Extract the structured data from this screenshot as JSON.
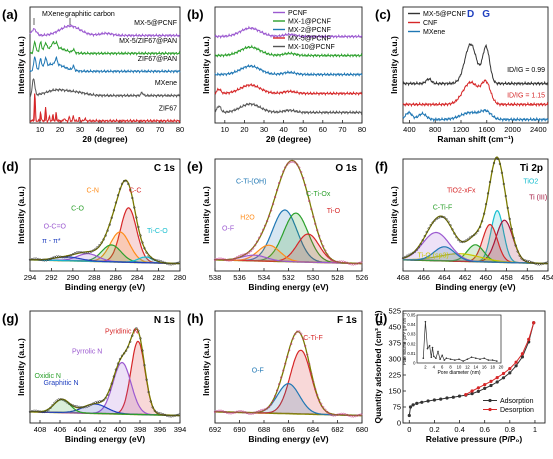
{
  "chart_data": [
    {
      "panel": "(a)",
      "type": "line",
      "xlabel": "2θ (degree)",
      "ylabel": "Intensity (a.u.)",
      "xlim": [
        5,
        80
      ],
      "xticks": [
        10,
        20,
        30,
        40,
        50,
        60,
        70,
        80
      ],
      "annotations": [
        "MXene",
        "graphitic carbon"
      ],
      "series": [
        {
          "name": "MX-5@PCNF",
          "color": "#9b59d0",
          "offset": 8.3,
          "peaks": [
            [
              7,
              0.6,
              1.2
            ],
            [
              25,
              0.9,
              5.0
            ],
            [
              43,
              0.2,
              3.0
            ]
          ]
        },
        {
          "name": "MX-5/ZIF67@PAN",
          "color": "#2ca02c",
          "offset": 6.6,
          "peaks": [
            [
              7.4,
              1.0,
              0.5
            ],
            [
              10.3,
              0.8,
              0.5
            ],
            [
              12.8,
              0.6,
              0.5
            ],
            [
              16.5,
              0.5,
              0.5
            ],
            [
              18.1,
              0.5,
              0.5
            ],
            [
              26.7,
              0.3,
              0.5
            ],
            [
              17,
              0.6,
              5.0
            ]
          ]
        },
        {
          "name": "ZIF67@PAN",
          "color": "#1f77b4",
          "offset": 4.9,
          "peaks": [
            [
              7.4,
              1.3,
              0.5
            ],
            [
              10.3,
              0.9,
              0.5
            ],
            [
              12.8,
              0.8,
              0.5
            ],
            [
              18.1,
              0.6,
              0.5
            ],
            [
              26.7,
              0.4,
              0.5
            ],
            [
              17,
              0.7,
              5.0
            ]
          ]
        },
        {
          "name": "MXene",
          "color": "#555555",
          "offset": 2.6,
          "peaks": [
            [
              6.8,
              1.6,
              0.6
            ],
            [
              18,
              0.5,
              5.0
            ],
            [
              28,
              0.3,
              5.0
            ],
            [
              61,
              0.3,
              0.5
            ]
          ]
        },
        {
          "name": "ZIF67",
          "color": "#d62728",
          "offset": 0.2,
          "peaks": [
            [
              7.4,
              2.8,
              0.25
            ],
            [
              10.3,
              0.9,
              0.25
            ],
            [
              12.8,
              1.3,
              0.25
            ],
            [
              14.7,
              0.4,
              0.25
            ],
            [
              16.5,
              0.6,
              0.25
            ],
            [
              18.1,
              0.8,
              0.25
            ],
            [
              22.2,
              0.3,
              0.25
            ],
            [
              24.6,
              0.4,
              0.25
            ],
            [
              26.7,
              0.5,
              0.25
            ],
            [
              29.7,
              0.3,
              0.25
            ],
            [
              32.5,
              0.3,
              0.25
            ]
          ]
        }
      ],
      "ylim": [
        0,
        11
      ]
    },
    {
      "panel": "(b)",
      "type": "line",
      "xlabel": "2θ (degree)",
      "ylabel": "Intensity (a.u.)",
      "xlim": [
        5,
        80
      ],
      "xticks": [
        10,
        20,
        30,
        40,
        50,
        60,
        70,
        80
      ],
      "series": [
        {
          "name": "PCNF",
          "color": "#9b59d0",
          "offset": 8.2,
          "peaks": [
            [
              23,
              0.8,
              5.0
            ],
            [
              43,
              0.2,
              3.0
            ]
          ]
        },
        {
          "name": "MX-1@PCNF",
          "color": "#2ca02c",
          "offset": 6.4,
          "peaks": [
            [
              23,
              0.8,
              5.0
            ],
            [
              43,
              0.2,
              3.0
            ]
          ]
        },
        {
          "name": "MX-2@PCNF",
          "color": "#1f77b4",
          "offset": 4.6,
          "peaks": [
            [
              23,
              0.8,
              5.0
            ],
            [
              43,
              0.2,
              3.0
            ]
          ]
        },
        {
          "name": "MX-5@PCNF",
          "color": "#d62728",
          "offset": 2.8,
          "peaks": [
            [
              7,
              0.4,
              1.0
            ],
            [
              23,
              0.8,
              5.0
            ],
            [
              43,
              0.2,
              3.0
            ]
          ]
        },
        {
          "name": "MX-10@PCNF",
          "color": "#555555",
          "offset": 1.0,
          "peaks": [
            [
              7,
              0.6,
              1.0
            ],
            [
              23,
              0.8,
              5.0
            ],
            [
              43,
              0.2,
              3.0
            ]
          ]
        }
      ],
      "ylim": [
        0,
        11
      ]
    },
    {
      "panel": "(c)",
      "type": "line",
      "xlabel": "Raman shift (cm⁻¹)",
      "ylabel": "Intensity (a.u.)",
      "xlim": [
        300,
        2550
      ],
      "xticks": [
        400,
        800,
        1200,
        1600,
        2000,
        2400
      ],
      "annotations": [
        "D",
        "G",
        "ID/IG = 0.99",
        "ID/IG = 1.15"
      ],
      "series": [
        {
          "name": "MX-5@PCNF",
          "color": "#333333",
          "offset": 3.4,
          "peaks": [
            [
              1350,
              3.4,
              90
            ],
            [
              1590,
              3.1,
              55
            ],
            [
              700,
              0.4,
              40
            ]
          ]
        },
        {
          "name": "CNF",
          "color": "#d62728",
          "offset": 1.6,
          "peaks": [
            [
              1350,
              1.9,
              120
            ],
            [
              1590,
              1.75,
              70
            ]
          ]
        },
        {
          "name": "MXene",
          "color": "#1f77b4",
          "offset": 0.3,
          "peaks": [
            [
              200,
              0.8,
              40
            ],
            [
              390,
              0.6,
              50
            ],
            [
              600,
              0.5,
              60
            ],
            [
              1350,
              0.6,
              150
            ],
            [
              1590,
              0.6,
              80
            ]
          ]
        }
      ],
      "ylim": [
        0,
        10
      ]
    },
    {
      "panel": "(d)",
      "type": "line",
      "title": "C 1s",
      "xlabel": "Binding energy (eV)",
      "ylabel": "Intensity (a.u.)",
      "xlim": [
        294,
        280
      ],
      "xticks": [
        294,
        292,
        290,
        288,
        286,
        284,
        282,
        280
      ],
      "components": [
        {
          "name": "C-C",
          "color": "#d62728",
          "center": 284.8,
          "height": 0.58,
          "width": 0.75
        },
        {
          "name": "C-N",
          "color": "#ff8c1a",
          "center": 285.6,
          "height": 0.32,
          "width": 0.9
        },
        {
          "name": "C-O",
          "color": "#2ca02c",
          "center": 286.4,
          "height": 0.18,
          "width": 0.9
        },
        {
          "name": "O-C=O",
          "color": "#9b59d0",
          "center": 288.6,
          "height": 0.08,
          "width": 1.0
        },
        {
          "name": "Ti-C-O",
          "color": "#17becf",
          "center": 283.2,
          "height": 0.06,
          "width": 0.7
        },
        {
          "name": "π - π*",
          "color": "#1f3fbf",
          "center": 290.5,
          "height": 0.04,
          "width": 1.2
        }
      ],
      "ylim": [
        0,
        1.1
      ]
    },
    {
      "panel": "(e)",
      "type": "line",
      "title": "O 1s",
      "xlabel": "Binding energy (eV)",
      "ylabel": "Intensity (a.u.)",
      "xlim": [
        538,
        526
      ],
      "xticks": [
        538,
        536,
        534,
        532,
        530,
        528,
        526
      ],
      "components": [
        {
          "name": "C-Ti-(OH)",
          "color": "#1f77b4",
          "center": 532.3,
          "height": 0.55,
          "width": 1.0
        },
        {
          "name": "C-Ti-Ox",
          "color": "#2ca02c",
          "center": 531.4,
          "height": 0.52,
          "width": 1.0
        },
        {
          "name": "Ti-O",
          "color": "#d62728",
          "center": 530.4,
          "height": 0.3,
          "width": 0.9
        },
        {
          "name": "H2O",
          "color": "#ff8c1a",
          "center": 533.6,
          "height": 0.17,
          "width": 0.9
        },
        {
          "name": "O-F",
          "color": "#9b59d0",
          "center": 534.8,
          "height": 0.06,
          "width": 1.0
        }
      ],
      "ylim": [
        0,
        1.1
      ]
    },
    {
      "panel": "(f)",
      "type": "line",
      "title": "Ti 2p",
      "xlabel": "Binding energy (eV)",
      "ylabel": "Intensity (a.u.)",
      "xlim": [
        468,
        454
      ],
      "xticks": [
        468,
        466,
        464,
        462,
        460,
        458,
        456,
        454
      ],
      "components": [
        {
          "name": "TiO2",
          "color": "#17becf",
          "center": 458.9,
          "height": 0.55,
          "width": 0.6
        },
        {
          "name": "Ti (III)",
          "color": "#a0143c",
          "center": 458.2,
          "height": 0.45,
          "width": 0.8
        },
        {
          "name": "TiO2-xFx",
          "color": "#d62728",
          "center": 459.6,
          "height": 0.4,
          "width": 0.7
        },
        {
          "name": "C-Ti-F",
          "color": "#2ca02c",
          "center": 461.0,
          "height": 0.18,
          "width": 0.8
        },
        {
          "name": "Ti-O (sp3)",
          "color": "#c8c800",
          "center": 462.5,
          "height": 0.08,
          "width": 2.0
        },
        {
          "name": "Ti 2p1/2",
          "color": "#9b59d0",
          "center": 464.8,
          "height": 0.3,
          "width": 1.3
        },
        {
          "name": "Ti 2p1/2 (b)",
          "color": "#1f77b4",
          "center": 464.0,
          "height": 0.15,
          "width": 1.0
        }
      ],
      "ylim": [
        0,
        1.1
      ]
    },
    {
      "panel": "(g)",
      "type": "line",
      "title": "N 1s",
      "xlabel": "Binding energy (eV)",
      "ylabel": "Intensity (a.u.)",
      "xlim": [
        409,
        394
      ],
      "xticks": [
        408,
        406,
        404,
        402,
        400,
        398,
        396,
        394
      ],
      "components": [
        {
          "name": "Pyridinic N",
          "color": "#d62728",
          "center": 398.2,
          "height": 0.78,
          "width": 0.7
        },
        {
          "name": "Pyrrolic N",
          "color": "#9b59d0",
          "center": 399.8,
          "height": 0.55,
          "width": 0.9
        },
        {
          "name": "Graphitic N",
          "color": "#1f3fbf",
          "center": 402.5,
          "height": 0.1,
          "width": 1.2
        },
        {
          "name": "Oxidic N",
          "color": "#2ca02c",
          "center": 405.8,
          "height": 0.14,
          "width": 0.8
        }
      ],
      "ylim": [
        0,
        1.1
      ]
    },
    {
      "panel": "(h)",
      "type": "line",
      "title": "F 1s",
      "xlabel": "Binding energy (eV)",
      "ylabel": "Intensity (a.u.)",
      "xlim": [
        692,
        680
      ],
      "xticks": [
        692,
        690,
        688,
        686,
        684,
        682,
        680
      ],
      "components": [
        {
          "name": "C-Ti-F",
          "color": "#d62728",
          "center": 685.0,
          "height": 0.68,
          "width": 0.85
        },
        {
          "name": "O-F",
          "color": "#1f77b4",
          "center": 686.0,
          "height": 0.32,
          "width": 0.9
        }
      ],
      "ylim": [
        0,
        1.1
      ]
    },
    {
      "panel": "(i)",
      "type": "line",
      "xlabel": "Relative pressure (P/P₀)",
      "ylabel": "Quantity adsorbed (cm³ g⁻¹)",
      "xlim": [
        -0.05,
        1.08
      ],
      "ylim": [
        0,
        525
      ],
      "xticks": [
        0.0,
        0.2,
        0.4,
        0.6,
        0.8,
        1.0
      ],
      "yticks": [
        0,
        75,
        150,
        225,
        300,
        375,
        450,
        525
      ],
      "series": [
        {
          "name": "Adsorption",
          "color": "#333333",
          "x": [
            0.0,
            0.01,
            0.03,
            0.06,
            0.1,
            0.15,
            0.2,
            0.25,
            0.3,
            0.35,
            0.4,
            0.45,
            0.5,
            0.55,
            0.6,
            0.65,
            0.7,
            0.75,
            0.8,
            0.85,
            0.9,
            0.95,
            0.99
          ],
          "y": [
            35,
            75,
            85,
            92,
            97,
            103,
            108,
            112,
            117,
            121,
            126,
            131,
            138,
            148,
            162,
            176,
            192,
            212,
            235,
            268,
            310,
            380,
            470
          ]
        },
        {
          "name": "Desorption",
          "color": "#d62728",
          "x": [
            0.45,
            0.5,
            0.55,
            0.6,
            0.65,
            0.7,
            0.75,
            0.8,
            0.85,
            0.9,
            0.95,
            0.99
          ],
          "y": [
            133,
            150,
            165,
            180,
            195,
            213,
            232,
            255,
            285,
            325,
            392,
            470
          ]
        }
      ],
      "inset": {
        "xlabel": "Pore diameter (nm)",
        "ylabel": "Pore volume (cm³ g⁻¹ nm⁻¹)",
        "xlim": [
          0,
          20
        ],
        "ylim": [
          0,
          0.05
        ],
        "xticks": [
          2,
          4,
          6,
          8,
          10,
          12,
          14,
          16,
          18,
          20
        ],
        "yticks": [
          0,
          0.01,
          0.02,
          0.03,
          0.04,
          0.05
        ],
        "x": [
          1.5,
          2.0,
          2.5,
          3.0,
          3.4,
          3.7,
          4.0,
          4.5,
          5.0,
          5.5,
          6.0,
          6.5,
          7.0,
          8.0,
          9.0,
          10.0,
          11.0,
          12.0,
          13.0,
          14.0,
          15.0,
          16.0,
          17.0,
          18.0,
          19.0
        ],
        "y": [
          0.005,
          0.043,
          0.015,
          0.018,
          0.006,
          0.016,
          0.007,
          0.005,
          0.012,
          0.004,
          0.008,
          0.003,
          0.005,
          0.004,
          0.003,
          0.004,
          0.002,
          0.004,
          0.006,
          0.005,
          0.004,
          0.005,
          0.003,
          0.003,
          0.002
        ]
      }
    }
  ]
}
